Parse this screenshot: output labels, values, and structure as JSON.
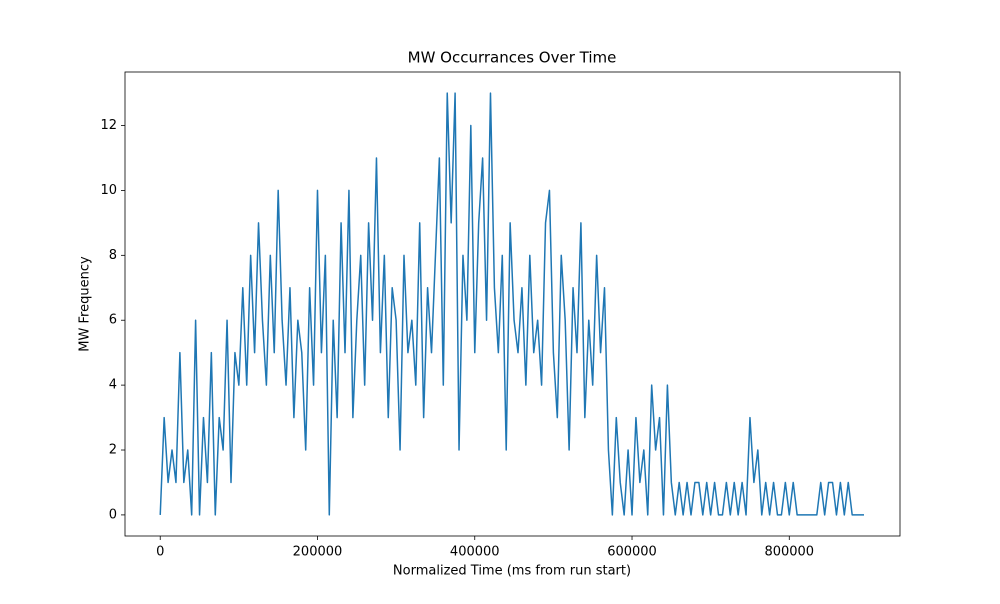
{
  "chart_data": {
    "type": "line",
    "title": "MW Occurrances Over Time",
    "x_label": "Normalized Time (ms from run start)",
    "y_label": "MW Frequency",
    "color": "#1f77b4",
    "xlim": [
      -44800,
      940800
    ],
    "ylim": [
      -0.65,
      13.65
    ],
    "xticks": [
      0,
      200000,
      400000,
      600000,
      800000
    ],
    "yticks": [
      0,
      2,
      4,
      6,
      8,
      10,
      12
    ],
    "grid": false,
    "x": [
      0,
      5000,
      10000,
      15000,
      20000,
      25000,
      30000,
      35000,
      40000,
      45000,
      50000,
      55000,
      60000,
      65000,
      70000,
      75000,
      80000,
      85000,
      90000,
      95000,
      100000,
      105000,
      110000,
      115000,
      120000,
      125000,
      130000,
      135000,
      140000,
      145000,
      150000,
      155000,
      160000,
      165000,
      170000,
      175000,
      180000,
      185000,
      190000,
      195000,
      200000,
      205000,
      210000,
      215000,
      220000,
      225000,
      230000,
      235000,
      240000,
      245000,
      250000,
      255000,
      260000,
      265000,
      270000,
      275000,
      280000,
      285000,
      290000,
      295000,
      300000,
      305000,
      310000,
      315000,
      320000,
      325000,
      330000,
      335000,
      340000,
      345000,
      350000,
      355000,
      360000,
      365000,
      370000,
      375000,
      380000,
      385000,
      390000,
      395000,
      400000,
      405000,
      410000,
      415000,
      420000,
      425000,
      430000,
      435000,
      440000,
      445000,
      450000,
      455000,
      460000,
      465000,
      470000,
      475000,
      480000,
      485000,
      490000,
      495000,
      500000,
      505000,
      510000,
      515000,
      520000,
      525000,
      530000,
      535000,
      540000,
      545000,
      550000,
      555000,
      560000,
      565000,
      570000,
      575000,
      580000,
      585000,
      590000,
      595000,
      600000,
      605000,
      610000,
      615000,
      620000,
      625000,
      630000,
      635000,
      640000,
      645000,
      650000,
      655000,
      660000,
      665000,
      670000,
      675000,
      680000,
      685000,
      690000,
      695000,
      700000,
      705000,
      710000,
      715000,
      720000,
      725000,
      730000,
      735000,
      740000,
      745000,
      750000,
      755000,
      760000,
      765000,
      770000,
      775000,
      780000,
      785000,
      790000,
      795000,
      800000,
      805000,
      810000,
      815000,
      820000,
      825000,
      830000,
      835000,
      840000,
      845000,
      850000,
      855000,
      860000,
      865000,
      870000,
      875000,
      880000,
      885000,
      890000,
      895000
    ],
    "values": [
      0,
      3,
      1,
      2,
      1,
      5,
      1,
      2,
      0,
      6,
      0,
      3,
      1,
      5,
      0,
      3,
      2,
      6,
      1,
      5,
      4,
      7,
      4,
      8,
      5,
      9,
      6,
      4,
      8,
      5,
      10,
      6,
      4,
      7,
      3,
      6,
      5,
      2,
      7,
      4,
      10,
      5,
      8,
      0,
      6,
      3,
      9,
      5,
      10,
      3,
      6,
      8,
      4,
      9,
      6,
      11,
      5,
      8,
      3,
      7,
      6,
      2,
      8,
      5,
      6,
      4,
      9,
      3,
      7,
      5,
      8,
      11,
      4,
      13,
      9,
      13,
      2,
      8,
      6,
      12,
      5,
      9,
      11,
      6,
      13,
      7,
      5,
      8,
      2,
      9,
      6,
      5,
      7,
      4,
      8,
      5,
      6,
      4,
      9,
      10,
      5,
      3,
      8,
      6,
      2,
      7,
      5,
      9,
      3,
      6,
      4,
      8,
      5,
      7,
      2,
      0,
      3,
      1,
      0,
      2,
      0,
      3,
      1,
      2,
      0,
      4,
      2,
      3,
      0,
      4,
      1,
      0,
      1,
      0,
      1,
      0,
      1,
      1,
      0,
      1,
      0,
      1,
      0,
      0,
      1,
      0,
      1,
      0,
      1,
      0,
      3,
      1,
      2,
      0,
      1,
      0,
      1,
      0,
      0,
      1,
      0,
      1,
      0,
      0,
      0,
      0,
      0,
      0,
      1,
      0,
      1,
      1,
      0,
      1,
      0,
      1,
      0,
      0,
      0,
      0
    ]
  }
}
